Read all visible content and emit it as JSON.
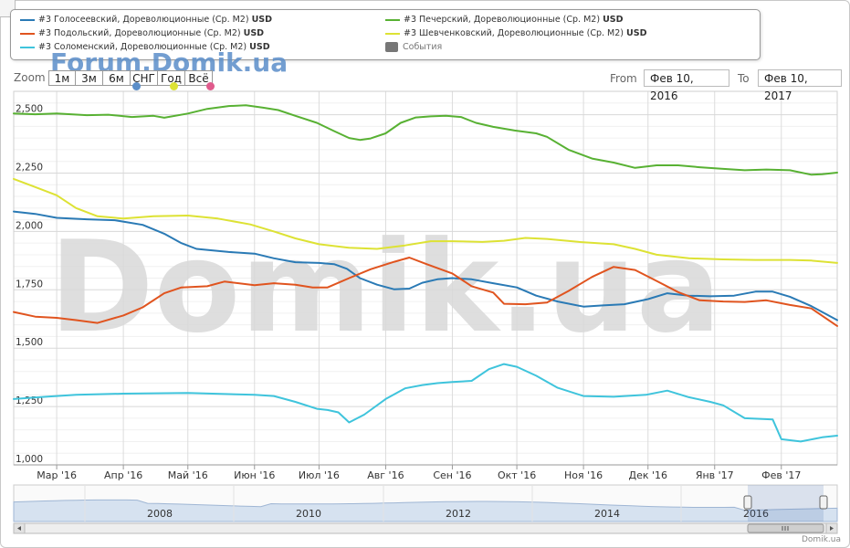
{
  "legend": {
    "items": [
      {
        "label": "#3 Голосеевский, Дореволюционные (Ср. M2)",
        "unit": "USD",
        "color": "#2a7ab5"
      },
      {
        "label": "#3 Подольский, Дореволюционные (Ср. M2)",
        "unit": "USD",
        "color": "#e0541f"
      },
      {
        "label": "#3 Соломенский, Дореволюционные (Ср. M2)",
        "unit": "USD",
        "color": "#3fc4dc"
      },
      {
        "label": "#3 Печерский, Дореволюционные (Ср. M2)",
        "unit": "USD",
        "color": "#58b133"
      },
      {
        "label": "#3 Шевченковский, Дореволюционные (Ср. M2)",
        "unit": "USD",
        "color": "#dde234"
      }
    ],
    "events_label": "События"
  },
  "watermark_top": "Forum.Domik.ua",
  "watermark_center": "Domik.ua",
  "credit": "Domik.ua",
  "zoom": {
    "label": "Zoom",
    "buttons": [
      "1м",
      "3м",
      "6м",
      "СНГ",
      "Год",
      "Всё"
    ],
    "dot_colors": [
      "#5b8ec9",
      "#dde234",
      "#e05a8c"
    ]
  },
  "range": {
    "from_label": "From",
    "from_value": "Фев 10, 2016",
    "to_label": "To",
    "to_value": "Фев 10, 2017"
  },
  "chart_data": {
    "type": "line",
    "ylim": [
      1000,
      2600
    ],
    "y_ticks": [
      1000,
      1250,
      1500,
      1750,
      2000,
      2250,
      2500
    ],
    "y_tick_labels": [
      "1,000",
      "1,250",
      "1,500",
      "1,750",
      "2,000",
      "2,250",
      "2,500"
    ],
    "x_domain": [
      "2016-02-10",
      "2017-02-27"
    ],
    "x_ticks": [
      {
        "date": "2016-03-01",
        "label": "Мар '16"
      },
      {
        "date": "2016-04-01",
        "label": "Апр '16"
      },
      {
        "date": "2016-05-01",
        "label": "Май '16"
      },
      {
        "date": "2016-06-01",
        "label": "Июн '16"
      },
      {
        "date": "2016-07-01",
        "label": "Июл '16"
      },
      {
        "date": "2016-08-01",
        "label": "Авг '16"
      },
      {
        "date": "2016-09-01",
        "label": "Сен '16"
      },
      {
        "date": "2016-10-01",
        "label": "Окт '16"
      },
      {
        "date": "2016-11-01",
        "label": "Ноя '16"
      },
      {
        "date": "2016-12-01",
        "label": "Дек '16"
      },
      {
        "date": "2017-01-01",
        "label": "Янв '17"
      },
      {
        "date": "2017-02-01",
        "label": "Фев '17"
      }
    ],
    "grid": "on",
    "legend_position": "top",
    "series": [
      {
        "color": "#58b133",
        "points": [
          [
            "2016-02-10",
            2505
          ],
          [
            "2016-02-20",
            2502
          ],
          [
            "2016-03-01",
            2505
          ],
          [
            "2016-03-15",
            2498
          ],
          [
            "2016-03-25",
            2500
          ],
          [
            "2016-04-05",
            2490
          ],
          [
            "2016-04-15",
            2495
          ],
          [
            "2016-04-20",
            2487
          ],
          [
            "2016-05-01",
            2505
          ],
          [
            "2016-05-10",
            2525
          ],
          [
            "2016-05-20",
            2537
          ],
          [
            "2016-05-28",
            2540
          ],
          [
            "2016-06-05",
            2530
          ],
          [
            "2016-06-12",
            2520
          ],
          [
            "2016-06-20",
            2495
          ],
          [
            "2016-06-30",
            2465
          ],
          [
            "2016-07-08",
            2430
          ],
          [
            "2016-07-15",
            2400
          ],
          [
            "2016-07-20",
            2392
          ],
          [
            "2016-07-25",
            2398
          ],
          [
            "2016-08-01",
            2420
          ],
          [
            "2016-08-08",
            2465
          ],
          [
            "2016-08-15",
            2488
          ],
          [
            "2016-08-22",
            2493
          ],
          [
            "2016-08-29",
            2495
          ],
          [
            "2016-09-05",
            2490
          ],
          [
            "2016-09-12",
            2465
          ],
          [
            "2016-09-20",
            2448
          ],
          [
            "2016-09-30",
            2432
          ],
          [
            "2016-10-10",
            2420
          ],
          [
            "2016-10-15",
            2405
          ],
          [
            "2016-10-25",
            2350
          ],
          [
            "2016-11-05",
            2312
          ],
          [
            "2016-11-15",
            2295
          ],
          [
            "2016-11-25",
            2272
          ],
          [
            "2016-12-05",
            2283
          ],
          [
            "2016-12-15",
            2283
          ],
          [
            "2016-12-25",
            2275
          ],
          [
            "2017-01-05",
            2268
          ],
          [
            "2017-01-15",
            2262
          ],
          [
            "2017-01-25",
            2265
          ],
          [
            "2017-02-05",
            2262
          ],
          [
            "2017-02-15",
            2243
          ],
          [
            "2017-02-20",
            2245
          ],
          [
            "2017-02-27",
            2252
          ]
        ]
      },
      {
        "color": "#dde234",
        "points": [
          [
            "2016-02-10",
            2225
          ],
          [
            "2016-02-20",
            2190
          ],
          [
            "2016-03-01",
            2155
          ],
          [
            "2016-03-10",
            2100
          ],
          [
            "2016-03-20",
            2065
          ],
          [
            "2016-04-01",
            2055
          ],
          [
            "2016-04-15",
            2065
          ],
          [
            "2016-05-01",
            2068
          ],
          [
            "2016-05-15",
            2055
          ],
          [
            "2016-05-30",
            2030
          ],
          [
            "2016-06-10",
            2000
          ],
          [
            "2016-06-20",
            1970
          ],
          [
            "2016-07-01",
            1945
          ],
          [
            "2016-07-15",
            1930
          ],
          [
            "2016-07-28",
            1925
          ],
          [
            "2016-08-10",
            1940
          ],
          [
            "2016-08-22",
            1958
          ],
          [
            "2016-09-01",
            1958
          ],
          [
            "2016-09-15",
            1955
          ],
          [
            "2016-09-25",
            1960
          ],
          [
            "2016-10-05",
            1972
          ],
          [
            "2016-10-15",
            1968
          ],
          [
            "2016-10-30",
            1955
          ],
          [
            "2016-11-15",
            1945
          ],
          [
            "2016-11-25",
            1925
          ],
          [
            "2016-12-05",
            1900
          ],
          [
            "2016-12-20",
            1885
          ],
          [
            "2017-01-05",
            1880
          ],
          [
            "2017-01-20",
            1878
          ],
          [
            "2017-02-05",
            1878
          ],
          [
            "2017-02-15",
            1875
          ],
          [
            "2017-02-27",
            1865
          ]
        ]
      },
      {
        "color": "#2a7ab5",
        "points": [
          [
            "2016-02-10",
            2085
          ],
          [
            "2016-02-20",
            2075
          ],
          [
            "2016-03-01",
            2058
          ],
          [
            "2016-03-15",
            2052
          ],
          [
            "2016-03-28",
            2048
          ],
          [
            "2016-04-10",
            2028
          ],
          [
            "2016-04-20",
            1990
          ],
          [
            "2016-04-28",
            1950
          ],
          [
            "2016-05-05",
            1925
          ],
          [
            "2016-05-20",
            1912
          ],
          [
            "2016-06-01",
            1905
          ],
          [
            "2016-06-10",
            1885
          ],
          [
            "2016-06-20",
            1868
          ],
          [
            "2016-07-01",
            1865
          ],
          [
            "2016-07-08",
            1860
          ],
          [
            "2016-07-14",
            1840
          ],
          [
            "2016-07-20",
            1800
          ],
          [
            "2016-07-28",
            1772
          ],
          [
            "2016-08-05",
            1752
          ],
          [
            "2016-08-12",
            1755
          ],
          [
            "2016-08-18",
            1780
          ],
          [
            "2016-08-25",
            1795
          ],
          [
            "2016-09-01",
            1800
          ],
          [
            "2016-09-10",
            1795
          ],
          [
            "2016-09-20",
            1778
          ],
          [
            "2016-10-01",
            1760
          ],
          [
            "2016-10-10",
            1725
          ],
          [
            "2016-10-20",
            1700
          ],
          [
            "2016-11-01",
            1678
          ],
          [
            "2016-11-10",
            1683
          ],
          [
            "2016-11-20",
            1688
          ],
          [
            "2016-12-01",
            1710
          ],
          [
            "2016-12-10",
            1735
          ],
          [
            "2016-12-20",
            1725
          ],
          [
            "2016-12-30",
            1722
          ],
          [
            "2017-01-10",
            1725
          ],
          [
            "2017-01-20",
            1742
          ],
          [
            "2017-01-28",
            1742
          ],
          [
            "2017-02-05",
            1720
          ],
          [
            "2017-02-15",
            1680
          ],
          [
            "2017-02-27",
            1620
          ]
        ]
      },
      {
        "color": "#e0541f",
        "points": [
          [
            "2016-02-10",
            1655
          ],
          [
            "2016-02-20",
            1635
          ],
          [
            "2016-03-01",
            1630
          ],
          [
            "2016-03-10",
            1620
          ],
          [
            "2016-03-20",
            1608
          ],
          [
            "2016-04-01",
            1640
          ],
          [
            "2016-04-10",
            1675
          ],
          [
            "2016-04-20",
            1735
          ],
          [
            "2016-04-28",
            1760
          ],
          [
            "2016-05-10",
            1765
          ],
          [
            "2016-05-18",
            1785
          ],
          [
            "2016-06-01",
            1770
          ],
          [
            "2016-06-10",
            1778
          ],
          [
            "2016-06-20",
            1772
          ],
          [
            "2016-06-28",
            1760
          ],
          [
            "2016-07-05",
            1760
          ],
          [
            "2016-07-15",
            1800
          ],
          [
            "2016-07-25",
            1838
          ],
          [
            "2016-08-05",
            1870
          ],
          [
            "2016-08-12",
            1888
          ],
          [
            "2016-08-20",
            1860
          ],
          [
            "2016-09-01",
            1820
          ],
          [
            "2016-09-10",
            1765
          ],
          [
            "2016-09-20",
            1738
          ],
          [
            "2016-09-25",
            1690
          ],
          [
            "2016-10-05",
            1688
          ],
          [
            "2016-10-15",
            1695
          ],
          [
            "2016-10-25",
            1745
          ],
          [
            "2016-11-05",
            1805
          ],
          [
            "2016-11-15",
            1848
          ],
          [
            "2016-11-25",
            1835
          ],
          [
            "2016-12-05",
            1788
          ],
          [
            "2016-12-15",
            1740
          ],
          [
            "2016-12-25",
            1705
          ],
          [
            "2017-01-05",
            1700
          ],
          [
            "2017-01-15",
            1698
          ],
          [
            "2017-01-25",
            1705
          ],
          [
            "2017-02-05",
            1685
          ],
          [
            "2017-02-15",
            1670
          ],
          [
            "2017-02-27",
            1595
          ]
        ]
      },
      {
        "color": "#3fc4dc",
        "points": [
          [
            "2016-02-10",
            1282
          ],
          [
            "2016-02-25",
            1292
          ],
          [
            "2016-03-10",
            1300
          ],
          [
            "2016-04-01",
            1305
          ],
          [
            "2016-05-01",
            1308
          ],
          [
            "2016-06-01",
            1300
          ],
          [
            "2016-06-10",
            1295
          ],
          [
            "2016-06-20",
            1270
          ],
          [
            "2016-06-30",
            1240
          ],
          [
            "2016-07-05",
            1235
          ],
          [
            "2016-07-10",
            1225
          ],
          [
            "2016-07-15",
            1182
          ],
          [
            "2016-07-22",
            1215
          ],
          [
            "2016-08-01",
            1282
          ],
          [
            "2016-08-10",
            1328
          ],
          [
            "2016-08-18",
            1342
          ],
          [
            "2016-08-25",
            1350
          ],
          [
            "2016-09-01",
            1355
          ],
          [
            "2016-09-10",
            1360
          ],
          [
            "2016-09-18",
            1410
          ],
          [
            "2016-09-25",
            1432
          ],
          [
            "2016-10-01",
            1420
          ],
          [
            "2016-10-10",
            1382
          ],
          [
            "2016-10-20",
            1330
          ],
          [
            "2016-11-01",
            1295
          ],
          [
            "2016-11-15",
            1292
          ],
          [
            "2016-11-30",
            1300
          ],
          [
            "2016-12-10",
            1318
          ],
          [
            "2016-12-20",
            1290
          ],
          [
            "2016-12-30",
            1270
          ],
          [
            "2017-01-05",
            1255
          ],
          [
            "2017-01-15",
            1200
          ],
          [
            "2017-01-28",
            1195
          ],
          [
            "2017-02-01",
            1110
          ],
          [
            "2017-02-10",
            1100
          ],
          [
            "2017-02-20",
            1118
          ],
          [
            "2017-02-27",
            1125
          ]
        ]
      }
    ],
    "navigator": {
      "year_labels": [
        "2008",
        "2010",
        "2012",
        "2014",
        "2016"
      ]
    }
  }
}
